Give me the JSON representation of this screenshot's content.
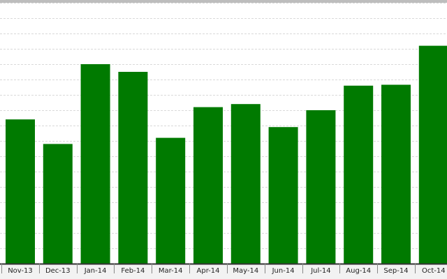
{
  "colors": {
    "bar": "#007a00",
    "grid": "#d9d9d9",
    "axis": "#333333",
    "top_border": "#bdbdbd",
    "axis_band": "#f2f2f2"
  },
  "chart_data": {
    "type": "bar",
    "categories": [
      "Nov-13",
      "Dec-13",
      "Jan-14",
      "Feb-14",
      "Mar-14",
      "Apr-14",
      "May-14",
      "Jun-14",
      "Jul-14",
      "Aug-14",
      "Sep-14",
      "Oct-14"
    ],
    "values": [
      47,
      39,
      65,
      62.5,
      41,
      51,
      52,
      44.5,
      50,
      58,
      58.3,
      71
    ],
    "ylim": [
      0,
      85
    ],
    "grid": true,
    "legend": "none"
  }
}
